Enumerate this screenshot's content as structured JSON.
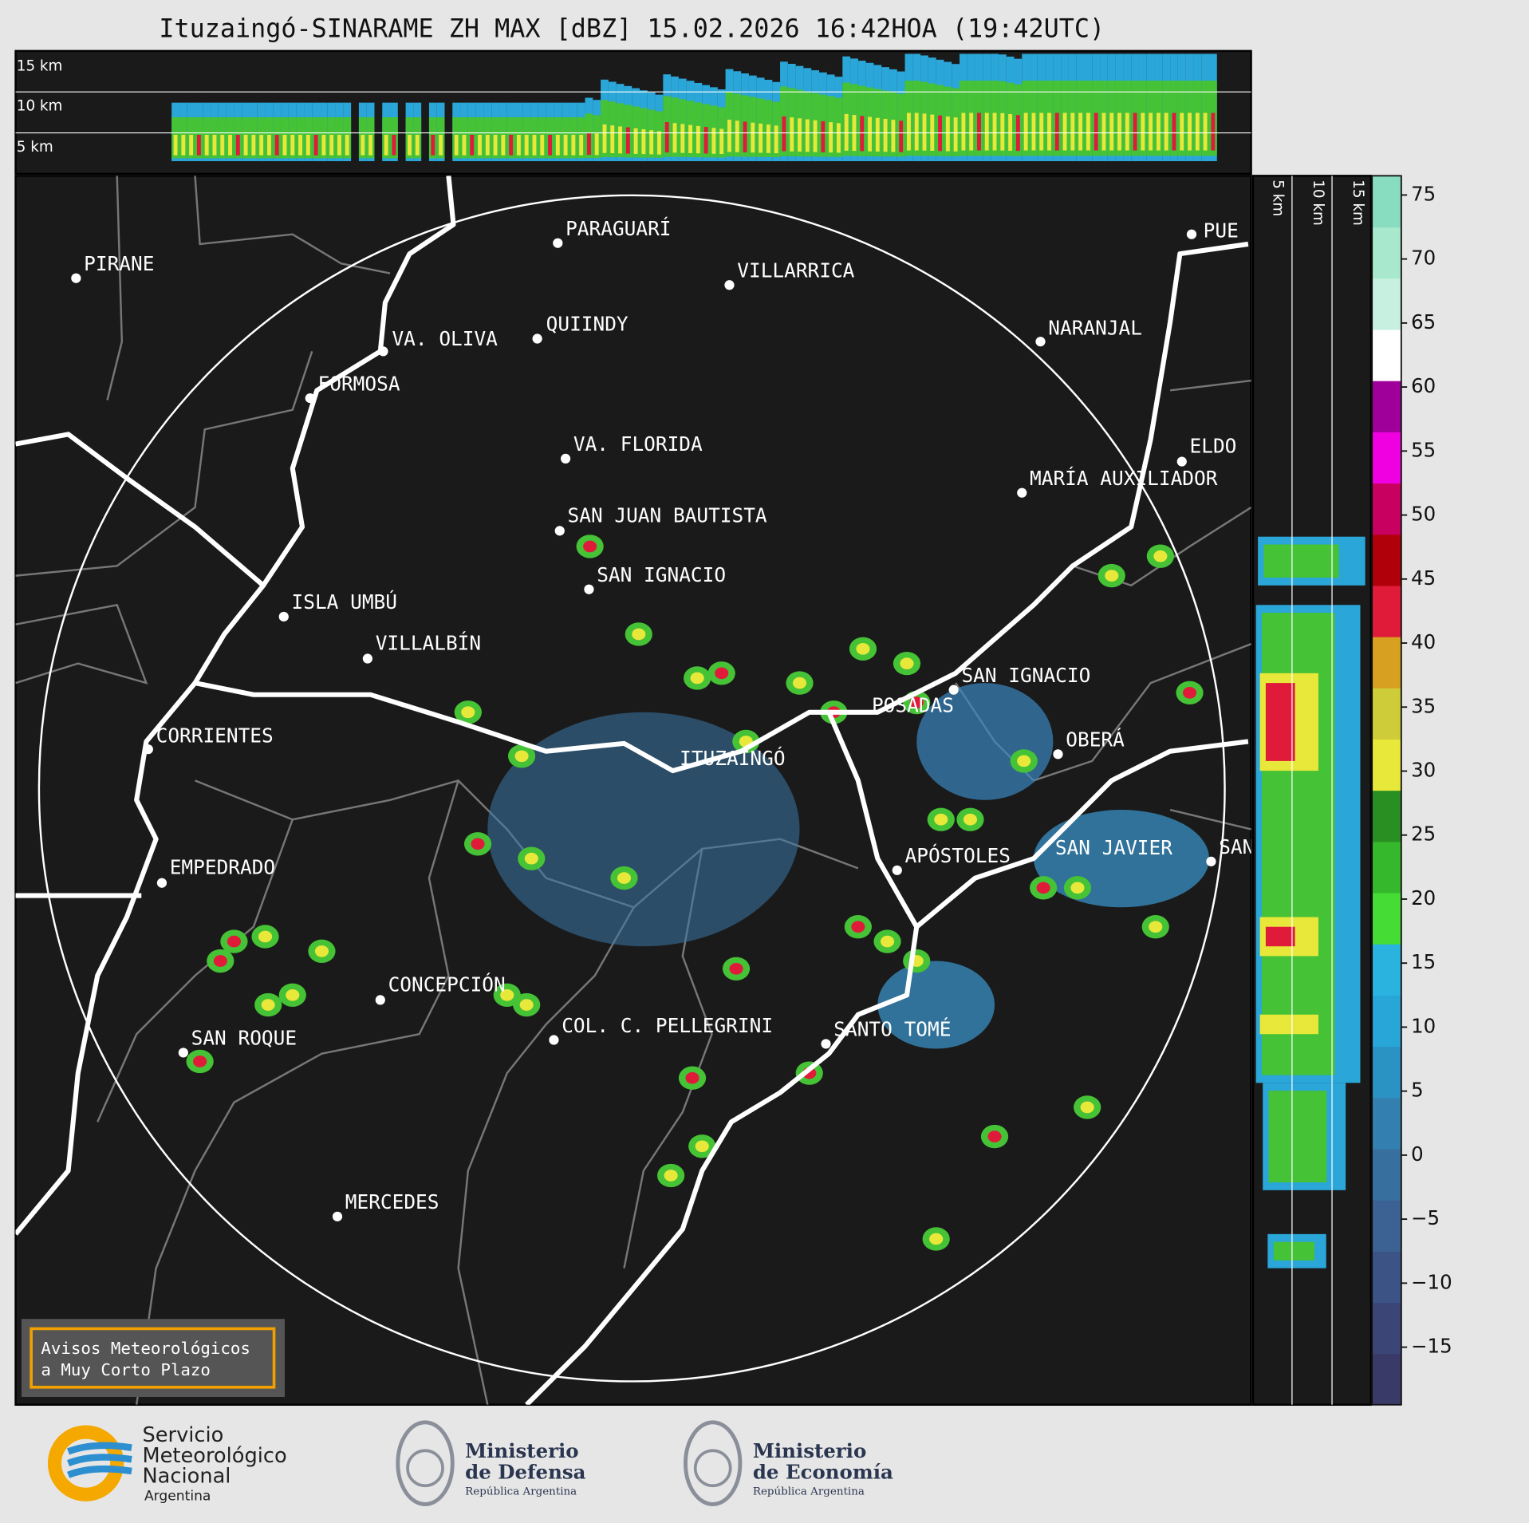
{
  "title": "Ituzaingó-SINARAME ZH MAX [dBZ] 15.02.2026 16:42HOA (19:42UTC)",
  "profile_top": {
    "height_labels": [
      "15 km",
      "10 km",
      "5 km"
    ]
  },
  "profile_side": {
    "height_labels": [
      "5 km",
      "10 km",
      "15 km"
    ]
  },
  "map": {
    "places": [
      "PARAGUARÍ",
      "VILLARRICA",
      "PIRANE",
      "QUIINDY",
      "VA. OLIVA",
      "NARANJAL",
      "FORMOSA",
      "VA. FLORIDA",
      "ELDO",
      "MARÍA AUXILIADOR",
      "SAN JUAN BAUTISTA",
      "SAN IGNACIO",
      "ISLA UMBÚ",
      "VILLALBÍN",
      "SAN IGNACIO",
      "POSADAS",
      "CORRIENTES",
      "ITUZAINGÓ",
      "OBERÁ",
      "SAN JAVIER",
      "SAN",
      "APÓSTOLES",
      "EMPEDRADO",
      "CONCEPCIÓN",
      "COL. C. PELLEGRINI",
      "SANTO TOMÉ",
      "SAN ROQUE",
      "MERCEDES",
      "PUE"
    ]
  },
  "colorbar": {
    "clim": [
      -19.5,
      76.5
    ],
    "colors": [
      "#3a3a68",
      "#3b4677",
      "#3c5485",
      "#3b6292",
      "#37709f",
      "#3380b0",
      "#2b92c4",
      "#28a6d8",
      "#2bb3e0",
      "#45dd35",
      "#36b82c",
      "#2a8f22",
      "#e8e83a",
      "#cfcc3a",
      "#d8a020",
      "#e01b3a",
      "#b0000a",
      "#c80060",
      "#f000e0",
      "#a0009a",
      "#ffffff",
      "#c8f0e0",
      "#a8e8cc",
      "#88dcc0"
    ],
    "ticks": [
      75,
      70,
      65,
      60,
      55,
      50,
      45,
      40,
      35,
      30,
      25,
      20,
      15,
      10,
      5,
      0,
      {
        "value": -5,
        "label": "−5"
      },
      {
        "value": -10,
        "label": "−10"
      },
      {
        "value": -15,
        "label": "−15"
      }
    ]
  },
  "notice": {
    "lines": [
      "Avisos Meteorológicos",
      "a Muy Corto Plazo"
    ]
  },
  "logos": [
    {
      "lines": [
        "Servicio",
        "Meteorológico",
        "Nacional"
      ],
      "country": "Argentina"
    },
    {
      "lines": [
        "Ministerio",
        "de Defensa"
      ],
      "country": "República Argentina"
    },
    {
      "lines": [
        "Ministerio",
        "de Economía"
      ],
      "country": "República Argentina"
    }
  ]
}
